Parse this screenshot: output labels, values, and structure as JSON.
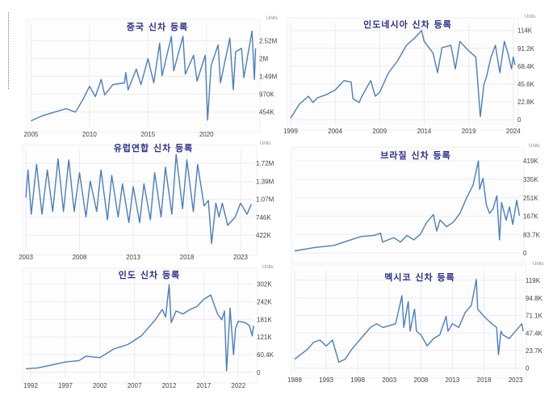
{
  "chart_data": [
    {
      "type": "line",
      "title": "중국 신차 등록",
      "unit_label": "Units",
      "color": "#4a7ebf",
      "grid": true,
      "xlim": [
        2004.9,
        2024.3
      ],
      "ylim": [
        0,
        3000000
      ],
      "x_ticks": [
        {
          "value": 2005,
          "label": "2005"
        },
        {
          "value": 2010,
          "label": "2010"
        },
        {
          "value": 2015,
          "label": "2015"
        },
        {
          "value": 2020,
          "label": "2020"
        }
      ],
      "y_ticks": [
        {
          "value": 454000,
          "label": "454K"
        },
        {
          "value": 970000,
          "label": "970K"
        },
        {
          "value": 1490000,
          "label": "1.49M"
        },
        {
          "value": 2000000,
          "label": "2M"
        },
        {
          "value": 2520000,
          "label": "2.52M"
        }
      ],
      "points": [
        [
          2005,
          200000
        ],
        [
          2006,
          350000
        ],
        [
          2007,
          450000
        ],
        [
          2008,
          550000
        ],
        [
          2008.8,
          450000
        ],
        [
          2009.5,
          850000
        ],
        [
          2010,
          1200000
        ],
        [
          2010.5,
          900000
        ],
        [
          2011,
          1400000
        ],
        [
          2011.3,
          950000
        ],
        [
          2012,
          1250000
        ],
        [
          2013,
          1300000
        ],
        [
          2013.1,
          1600000
        ],
        [
          2013.3,
          1100000
        ],
        [
          2014,
          1700000
        ],
        [
          2014.4,
          1250000
        ],
        [
          2015,
          2000000
        ],
        [
          2015.5,
          1300000
        ],
        [
          2016,
          2450000
        ],
        [
          2016.2,
          1500000
        ],
        [
          2017,
          2650000
        ],
        [
          2017.2,
          1650000
        ],
        [
          2018,
          2650000
        ],
        [
          2018.2,
          1550000
        ],
        [
          2018.9,
          2100000
        ],
        [
          2019.2,
          1350000
        ],
        [
          2019.9,
          2100000
        ],
        [
          2020.1,
          220000
        ],
        [
          2020.4,
          1800000
        ],
        [
          2021,
          2400000
        ],
        [
          2021.2,
          1300000
        ],
        [
          2022,
          2600000
        ],
        [
          2022.3,
          1100000
        ],
        [
          2022.5,
          2200000
        ],
        [
          2023,
          2300000
        ],
        [
          2023.2,
          1450000
        ],
        [
          2023.9,
          2800000
        ],
        [
          2024.1,
          1400000
        ],
        [
          2024.2,
          2300000
        ]
      ]
    },
    {
      "type": "line",
      "title": "인도네시아 신차 등록",
      "unit_label": "Units",
      "color": "#4a7ebf",
      "grid": true,
      "xlim": [
        1999,
        2024.2
      ],
      "ylim": [
        -7000,
        124000
      ],
      "x_ticks": [
        {
          "value": 1999,
          "label": "1999"
        },
        {
          "value": 2004,
          "label": "2004"
        },
        {
          "value": 2009,
          "label": "2009"
        },
        {
          "value": 2014,
          "label": "2014"
        },
        {
          "value": 2019,
          "label": "2019"
        },
        {
          "value": 2024,
          "label": "2024"
        }
      ],
      "y_ticks": [
        {
          "value": 0,
          "label": "0"
        },
        {
          "value": 22800,
          "label": "22.8K"
        },
        {
          "value": 45600,
          "label": "45.6K"
        },
        {
          "value": 68400,
          "label": "68.4K"
        },
        {
          "value": 91200,
          "label": "91.2K"
        },
        {
          "value": 114000,
          "label": "114K"
        }
      ],
      "points": [
        [
          1999,
          2000
        ],
        [
          2000,
          20000
        ],
        [
          2001,
          30000
        ],
        [
          2001.5,
          22000
        ],
        [
          2002,
          28000
        ],
        [
          2003,
          32000
        ],
        [
          2004,
          38000
        ],
        [
          2005,
          50000
        ],
        [
          2005.8,
          48000
        ],
        [
          2006,
          27000
        ],
        [
          2006.7,
          22000
        ],
        [
          2007,
          30000
        ],
        [
          2008,
          50000
        ],
        [
          2008.5,
          30000
        ],
        [
          2009,
          35000
        ],
        [
          2010,
          60000
        ],
        [
          2011,
          75000
        ],
        [
          2012,
          95000
        ],
        [
          2013,
          105000
        ],
        [
          2013.7,
          114000
        ],
        [
          2014,
          100000
        ],
        [
          2015,
          85000
        ],
        [
          2015.5,
          60000
        ],
        [
          2016,
          92000
        ],
        [
          2017,
          95000
        ],
        [
          2017.5,
          65000
        ],
        [
          2018,
          100000
        ],
        [
          2019,
          88000
        ],
        [
          2019.8,
          80000
        ],
        [
          2020.3,
          4000
        ],
        [
          2020.7,
          45000
        ],
        [
          2021,
          55000
        ],
        [
          2021.5,
          80000
        ],
        [
          2022,
          95000
        ],
        [
          2022.5,
          60000
        ],
        [
          2023,
          100000
        ],
        [
          2023.4,
          85000
        ],
        [
          2023.8,
          65000
        ],
        [
          2024,
          80000
        ],
        [
          2024.2,
          70000
        ]
      ]
    },
    {
      "type": "line",
      "title": "유럽연합 신차 등록",
      "unit_label": "Units",
      "color": "#4a7ebf",
      "grid": true,
      "xlim": [
        2003,
        2024.2
      ],
      "ylim": [
        146000,
        1970000
      ],
      "x_ticks": [
        {
          "value": 2003,
          "label": "2003"
        },
        {
          "value": 2008,
          "label": "2008"
        },
        {
          "value": 2013,
          "label": "2013"
        },
        {
          "value": 2018,
          "label": "2018"
        },
        {
          "value": 2023,
          "label": "2023"
        }
      ],
      "y_ticks": [
        {
          "value": 422000,
          "label": "422K"
        },
        {
          "value": 746000,
          "label": "746K"
        },
        {
          "value": 1070000,
          "label": "1.07M"
        },
        {
          "value": 1390000,
          "label": "1.39M"
        },
        {
          "value": 1720000,
          "label": "1.72M"
        }
      ],
      "points": [
        [
          2003,
          1100000
        ],
        [
          2003.2,
          1600000
        ],
        [
          2003.5,
          800000
        ],
        [
          2004,
          1700000
        ],
        [
          2004.5,
          800000
        ],
        [
          2005,
          1600000
        ],
        [
          2005.5,
          850000
        ],
        [
          2006,
          1800000
        ],
        [
          2006.5,
          850000
        ],
        [
          2007,
          1780000
        ],
        [
          2007.5,
          850000
        ],
        [
          2008,
          1550000
        ],
        [
          2008.6,
          750000
        ],
        [
          2009,
          1400000
        ],
        [
          2009.6,
          850000
        ],
        [
          2010,
          1600000
        ],
        [
          2010.6,
          700000
        ],
        [
          2011,
          1500000
        ],
        [
          2011.6,
          750000
        ],
        [
          2012,
          1350000
        ],
        [
          2012.6,
          650000
        ],
        [
          2013,
          1300000
        ],
        [
          2013.6,
          650000
        ],
        [
          2014,
          1350000
        ],
        [
          2014.6,
          700000
        ],
        [
          2015,
          1550000
        ],
        [
          2015.6,
          750000
        ],
        [
          2016,
          1650000
        ],
        [
          2016.6,
          800000
        ],
        [
          2017,
          1880000
        ],
        [
          2017.6,
          900000
        ],
        [
          2018,
          1780000
        ],
        [
          2018.6,
          850000
        ],
        [
          2019,
          1700000
        ],
        [
          2019.6,
          950000
        ],
        [
          2020,
          1050000
        ],
        [
          2020.3,
          270000
        ],
        [
          2020.7,
          1000000
        ],
        [
          2021,
          750000
        ],
        [
          2021.3,
          1000000
        ],
        [
          2021.8,
          600000
        ],
        [
          2022.5,
          750000
        ],
        [
          2023,
          1000000
        ],
        [
          2023.6,
          800000
        ],
        [
          2024,
          980000
        ]
      ]
    },
    {
      "type": "line",
      "title": "브라질 신차 등록",
      "unit_label": "Units",
      "color": "#4a7ebf",
      "grid": true,
      "xlim": [
        1990,
        2024.2
      ],
      "ylim": [
        -25000,
        460000
      ],
      "x_ticks": [],
      "y_ticks": [
        {
          "value": 0,
          "label": "0"
        },
        {
          "value": 83700,
          "label": "83.7K"
        },
        {
          "value": 167000,
          "label": "167K"
        },
        {
          "value": 251000,
          "label": "251K"
        },
        {
          "value": 335000,
          "label": "335K"
        },
        {
          "value": 419000,
          "label": "419K"
        }
      ],
      "points": [
        [
          1990,
          10000
        ],
        [
          1993,
          25000
        ],
        [
          1996,
          35000
        ],
        [
          1998,
          55000
        ],
        [
          2000,
          75000
        ],
        [
          2002,
          80000
        ],
        [
          2003,
          90000
        ],
        [
          2003.3,
          50000
        ],
        [
          2005,
          70000
        ],
        [
          2006,
          50000
        ],
        [
          2007,
          80000
        ],
        [
          2008,
          60000
        ],
        [
          2009,
          85000
        ],
        [
          2010,
          140000
        ],
        [
          2011,
          175000
        ],
        [
          2011.5,
          100000
        ],
        [
          2012,
          150000
        ],
        [
          2013,
          120000
        ],
        [
          2014,
          140000
        ],
        [
          2015,
          180000
        ],
        [
          2016,
          250000
        ],
        [
          2017,
          310000
        ],
        [
          2017.8,
          419000
        ],
        [
          2018,
          290000
        ],
        [
          2018.5,
          340000
        ],
        [
          2019,
          220000
        ],
        [
          2019.5,
          180000
        ],
        [
          2020,
          200000
        ],
        [
          2020.6,
          260000
        ],
        [
          2021,
          60000
        ],
        [
          2021.3,
          230000
        ],
        [
          2022,
          150000
        ],
        [
          2022.5,
          210000
        ],
        [
          2023,
          130000
        ],
        [
          2023.6,
          240000
        ],
        [
          2024,
          170000
        ]
      ]
    },
    {
      "type": "line",
      "title": "인도 신차 등록",
      "unit_label": "Units",
      "color": "#4a7ebf",
      "grid": true,
      "xlim": [
        1991.3,
        2024.3
      ],
      "ylim": [
        -20000,
        340000
      ],
      "x_ticks": [
        {
          "value": 1992,
          "label": "1992"
        },
        {
          "value": 1997,
          "label": "1997"
        },
        {
          "value": 2002,
          "label": "2002"
        },
        {
          "value": 2007,
          "label": "2007"
        },
        {
          "value": 2012,
          "label": "2012"
        },
        {
          "value": 2017,
          "label": "2017"
        },
        {
          "value": 2022,
          "label": "2022"
        }
      ],
      "y_ticks": [
        {
          "value": 0,
          "label": "0"
        },
        {
          "value": 60400,
          "label": "60.4K"
        },
        {
          "value": 121000,
          "label": "121K"
        },
        {
          "value": 181000,
          "label": "181K"
        },
        {
          "value": 242000,
          "label": "242K"
        },
        {
          "value": 302000,
          "label": "302K"
        }
      ],
      "points": [
        [
          1991.3,
          12000
        ],
        [
          1993,
          15000
        ],
        [
          1995,
          25000
        ],
        [
          1997,
          35000
        ],
        [
          1999,
          40000
        ],
        [
          2000,
          55000
        ],
        [
          2002,
          50000
        ],
        [
          2004,
          80000
        ],
        [
          2006,
          95000
        ],
        [
          2008,
          125000
        ],
        [
          2010,
          180000
        ],
        [
          2011,
          215000
        ],
        [
          2011.5,
          190000
        ],
        [
          2012,
          300000
        ],
        [
          2012.3,
          170000
        ],
        [
          2013,
          210000
        ],
        [
          2014,
          200000
        ],
        [
          2015,
          215000
        ],
        [
          2016,
          225000
        ],
        [
          2017,
          250000
        ],
        [
          2018,
          265000
        ],
        [
          2019,
          200000
        ],
        [
          2019.6,
          180000
        ],
        [
          2020,
          210000
        ],
        [
          2020.3,
          5000
        ],
        [
          2020.8,
          220000
        ],
        [
          2021.3,
          60000
        ],
        [
          2021.6,
          150000
        ],
        [
          2022,
          175000
        ],
        [
          2023,
          170000
        ],
        [
          2023.6,
          160000
        ],
        [
          2024,
          125000
        ],
        [
          2024.2,
          160000
        ]
      ]
    },
    {
      "type": "line",
      "title": "멕시코 신차 등록",
      "unit_label": "Units",
      "color": "#4a7ebf",
      "grid": true,
      "xlim": [
        1988,
        2024.2
      ],
      "ylim": [
        -7000,
        133000
      ],
      "x_ticks": [
        {
          "value": 1988,
          "label": "1988"
        },
        {
          "value": 1993,
          "label": "1993"
        },
        {
          "value": 1998,
          "label": "1998"
        },
        {
          "value": 2003,
          "label": "2003"
        },
        {
          "value": 2008,
          "label": "2008"
        },
        {
          "value": 2013,
          "label": "2013"
        },
        {
          "value": 2018,
          "label": "2018"
        },
        {
          "value": 2023,
          "label": "2023"
        }
      ],
      "y_ticks": [
        {
          "value": 0,
          "label": "0"
        },
        {
          "value": 23700,
          "label": "23.7K"
        },
        {
          "value": 47400,
          "label": "47.4K"
        },
        {
          "value": 71100,
          "label": "71.1K"
        },
        {
          "value": 94800,
          "label": "94.8K"
        },
        {
          "value": 119000,
          "label": "119K"
        }
      ],
      "points": [
        [
          1988,
          12000
        ],
        [
          1990,
          25000
        ],
        [
          1991,
          35000
        ],
        [
          1992,
          38000
        ],
        [
          1993,
          30000
        ],
        [
          1994,
          38000
        ],
        [
          1995,
          8000
        ],
        [
          1996,
          12000
        ],
        [
          1997,
          25000
        ],
        [
          1998,
          35000
        ],
        [
          1999,
          45000
        ],
        [
          2000,
          55000
        ],
        [
          2001,
          60000
        ],
        [
          2002,
          55000
        ],
        [
          2004,
          60000
        ],
        [
          2005,
          98000
        ],
        [
          2005.3,
          55000
        ],
        [
          2006,
          90000
        ],
        [
          2006.3,
          50000
        ],
        [
          2007,
          80000
        ],
        [
          2007.3,
          50000
        ],
        [
          2008,
          45000
        ],
        [
          2009,
          30000
        ],
        [
          2010,
          40000
        ],
        [
          2011,
          45000
        ],
        [
          2012,
          70000
        ],
        [
          2012.3,
          50000
        ],
        [
          2013,
          60000
        ],
        [
          2014,
          55000
        ],
        [
          2015,
          75000
        ],
        [
          2016,
          85000
        ],
        [
          2016.8,
          120000
        ],
        [
          2017,
          80000
        ],
        [
          2018,
          70000
        ],
        [
          2019,
          62000
        ],
        [
          2020,
          55000
        ],
        [
          2020.3,
          18000
        ],
        [
          2020.7,
          50000
        ],
        [
          2021,
          45000
        ],
        [
          2022,
          40000
        ],
        [
          2023,
          50000
        ],
        [
          2024,
          60000
        ],
        [
          2024.2,
          50000
        ]
      ]
    }
  ]
}
